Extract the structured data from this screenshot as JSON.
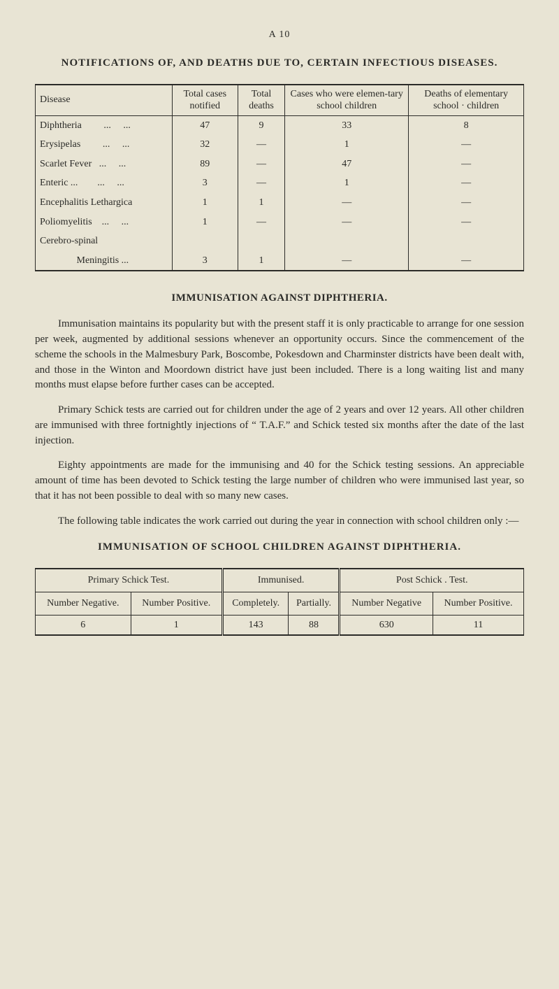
{
  "page_number": "A 10",
  "title1": "NOTIFICATIONS OF, AND DEATHS DUE TO, CERTAIN INFECTIOUS DISEASES.",
  "table1": {
    "headers": [
      "Disease",
      "Total cases notified",
      "Total deaths",
      "Cases who were elemen-tary school children",
      "Deaths of elementary school · children"
    ],
    "rows": [
      [
        "Diphtheria         ...     ...",
        "47",
        "9",
        "33",
        "8"
      ],
      [
        "Erysipelas         ...     ...",
        "32",
        "—",
        "1",
        "—"
      ],
      [
        "Scarlet Fever   ...     ...",
        "89",
        "—",
        "47",
        "—"
      ],
      [
        "Enteric ...        ...     ...",
        "3",
        "—",
        "1",
        "—"
      ],
      [
        "Encephalitis Lethargica",
        "1",
        "1",
        "—",
        "—"
      ],
      [
        "Poliomyelitis    ...     ...",
        "1",
        "—",
        "—",
        "—"
      ],
      [
        "Cerebro-spinal",
        "",
        "",
        "",
        ""
      ],
      [
        "               Meningitis ...",
        "3",
        "1",
        "—",
        "—"
      ]
    ]
  },
  "heading2": "IMMUNISATION AGAINST DIPHTHERIA.",
  "para1": "Immunisation maintains its popularity but with the present staff it is only practicable to arrange for one session per week, augmented by additional sessions whenever an opportunity occurs. Since the commencement of the scheme the schools in the Malmesbury Park, Boscombe, Pokesdown and Charminster districts have been dealt with, and those in the Winton and Moordown district have just been included. There is a long waiting list and many months must elapse before further cases can be accepted.",
  "para2": "Primary Schick tests are carried out for children under the age of 2 years and over 12 years. All other children are immunised with three fortnightly injections of “ T.A.F.” and Schick tested six months after the date of the last injection.",
  "para3": "Eighty appointments are made for the immunising and 40 for the Schick testing sessions. An appreciable amount of time has been devoted to Schick testing the large number of children who were immunised last year, so that it has not been possible to deal with so many new cases.",
  "para4": "The following table indicates the work carried out during the year in connection with school children only :—",
  "title2": "IMMUNISATION OF SCHOOL CHILDREN AGAINST DIPHTHERIA.",
  "table2": {
    "group_headers": [
      "Primary Schick Test.",
      "Immunised.",
      "Post Schick . Test."
    ],
    "sub_headers": [
      "Number Negative.",
      "Number Positive.",
      "Completely.",
      "Partially.",
      "Number Negative",
      "Number Positive."
    ],
    "row": [
      "6",
      "1",
      "143",
      "88",
      "630",
      "11"
    ]
  }
}
